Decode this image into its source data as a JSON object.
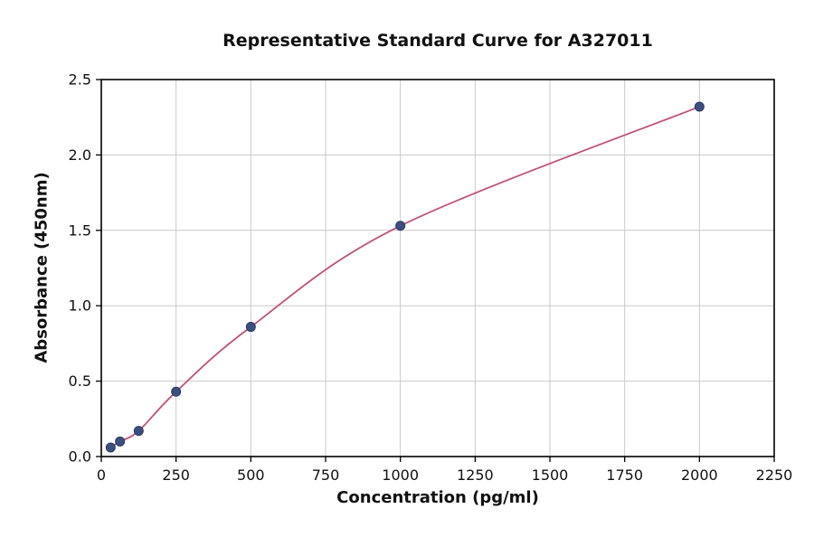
{
  "chart_data": {
    "type": "scatter",
    "title": "Representative Standard Curve for A327011",
    "xlabel": "Concentration (pg/ml)",
    "ylabel": "Absorbance (450nm)",
    "xlim": [
      0,
      2250
    ],
    "ylim": [
      0,
      2.5
    ],
    "xticks": [
      0,
      250,
      500,
      750,
      1000,
      1250,
      1500,
      1750,
      2000,
      2250
    ],
    "xtick_labels": [
      "0",
      "250",
      "500",
      "750",
      "1000",
      "1250",
      "1500",
      "1750",
      "2000",
      "2250"
    ],
    "yticks": [
      0,
      0.5,
      1,
      1.5,
      2,
      2.5
    ],
    "ytick_labels": [
      "0.0",
      "0.5",
      "1.0",
      "1.5",
      "2.0",
      "2.5"
    ],
    "grid": true,
    "legend": "none",
    "colors": {
      "grid": "#c9c9c9",
      "axis": "#000000",
      "text": "#111111",
      "curve": "#c0517a",
      "point_fill": "#3b5080",
      "point_edge": "#2a3a62"
    },
    "series": [
      {
        "name": "fitted standard curve",
        "type": "line"
      },
      {
        "name": "standard data points",
        "type": "scatter",
        "x": [
          31.25,
          62.5,
          125,
          250,
          500,
          1000,
          2000
        ],
        "y": [
          0.06,
          0.1,
          0.17,
          0.43,
          0.86,
          1.53,
          2.32
        ]
      }
    ]
  }
}
